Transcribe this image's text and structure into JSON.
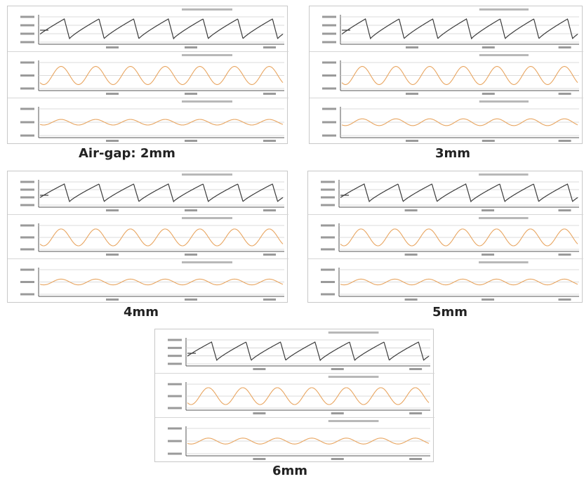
{
  "colors": {
    "black_trace": "#3a3a3a",
    "orange_trace": "#e8a560",
    "grid": "#cfcfcf",
    "frame": "#c8c8c8",
    "caption": "#222222"
  },
  "chart_data": [
    {
      "type": "line",
      "caption": "Air-gap: 2mm",
      "panels": [
        {
          "kind": "sawtooth",
          "cycles": 7,
          "start_phase": 0.15,
          "ytick_count": 4
        },
        {
          "kind": "sine",
          "cycles": 7,
          "amplitude": 0.6,
          "ytick_count": 3
        },
        {
          "kind": "sine",
          "cycles": 7,
          "amplitude": 0.18,
          "ytick_count": 3
        }
      ]
    },
    {
      "type": "line",
      "caption": "3mm",
      "panels": [
        {
          "kind": "sawtooth",
          "cycles": 7,
          "start_phase": 0.15,
          "ytick_count": 4
        },
        {
          "kind": "sine",
          "cycles": 7,
          "amplitude": 0.6,
          "ytick_count": 3
        },
        {
          "kind": "sine",
          "cycles": 7,
          "amplitude": 0.22,
          "ytick_count": 3
        }
      ]
    },
    {
      "type": "line",
      "caption": "4mm",
      "panels": [
        {
          "kind": "sawtooth",
          "cycles": 7,
          "start_phase": 0.15,
          "ytick_count": 4
        },
        {
          "kind": "sine",
          "cycles": 7,
          "amplitude": 0.6,
          "ytick_count": 3
        },
        {
          "kind": "sine",
          "cycles": 7,
          "amplitude": 0.2,
          "ytick_count": 3
        }
      ]
    },
    {
      "type": "line",
      "caption": "5mm",
      "panels": [
        {
          "kind": "sawtooth",
          "cycles": 7,
          "start_phase": 0.15,
          "ytick_count": 4
        },
        {
          "kind": "sine",
          "cycles": 7,
          "amplitude": 0.6,
          "ytick_count": 3
        },
        {
          "kind": "sine",
          "cycles": 7,
          "amplitude": 0.2,
          "ytick_count": 3
        }
      ]
    },
    {
      "type": "line",
      "caption": "6mm",
      "panels": [
        {
          "kind": "sawtooth",
          "cycles": 7,
          "start_phase": 0.15,
          "ytick_count": 4
        },
        {
          "kind": "sine",
          "cycles": 7,
          "amplitude": 0.6,
          "ytick_count": 3
        },
        {
          "kind": "sine",
          "cycles": 7,
          "amplitude": 0.2,
          "ytick_count": 3
        }
      ]
    }
  ]
}
